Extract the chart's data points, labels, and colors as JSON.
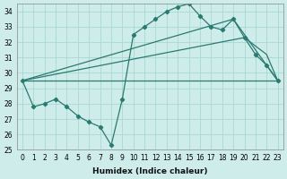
{
  "xlabel": "Humidex (Indice chaleur)",
  "bg_color": "#ceecea",
  "grid_color": "#a8d8d4",
  "line_color": "#2a7a70",
  "xlim": [
    -0.5,
    23.5
  ],
  "ylim": [
    25,
    34.5
  ],
  "yticks": [
    25,
    26,
    27,
    28,
    29,
    30,
    31,
    32,
    33,
    34
  ],
  "xticks": [
    0,
    1,
    2,
    3,
    4,
    5,
    6,
    7,
    8,
    9,
    10,
    11,
    12,
    13,
    14,
    15,
    16,
    17,
    18,
    19,
    20,
    21,
    22,
    23
  ],
  "series_with_markers": {
    "x": [
      0,
      1,
      2,
      3,
      4,
      5,
      6,
      7,
      8,
      9,
      10,
      11,
      12,
      13,
      14,
      15,
      16,
      17,
      18,
      19,
      20,
      21,
      22,
      23
    ],
    "y": [
      29.5,
      27.8,
      28.0,
      28.3,
      27.8,
      27.2,
      26.8,
      26.5,
      25.3,
      28.3,
      32.5,
      33.0,
      33.5,
      34.0,
      34.3,
      34.5,
      33.7,
      33.0,
      32.8,
      33.5,
      32.3,
      31.2,
      30.5,
      29.5
    ]
  },
  "line1": {
    "x": [
      0,
      19,
      23
    ],
    "y": [
      29.5,
      33.5,
      29.5
    ]
  },
  "line2": {
    "x": [
      0,
      20,
      22,
      23
    ],
    "y": [
      29.5,
      32.3,
      31.2,
      29.5
    ]
  },
  "line3": {
    "x": [
      0,
      23
    ],
    "y": [
      29.5,
      29.5
    ]
  }
}
